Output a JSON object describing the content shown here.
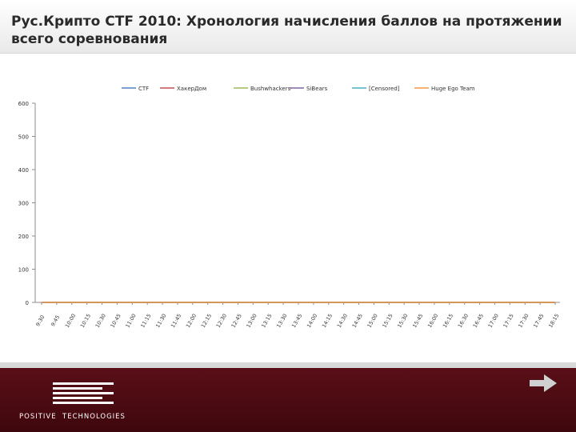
{
  "slide": {
    "title": "Рус.Крипто CTF 2010: Хронология начисления баллов на протяжении всего соревнования"
  },
  "footer": {
    "logo_text": "POSITIVE  TECHNOLOGIES",
    "logo_icon": "positive-technologies-logo",
    "next_icon": "arrow-right-icon",
    "background_color": "#4f0c14"
  },
  "chart_data": {
    "type": "line",
    "title": "",
    "xlabel": "",
    "ylabel": "",
    "ylim": [
      0,
      600
    ],
    "yticks": [
      0,
      100,
      200,
      300,
      400,
      500,
      600
    ],
    "grid": false,
    "legend_position": "top",
    "categories": [
      "9:30",
      "9:45",
      "10:00",
      "10:15",
      "10:30",
      "10:45",
      "11:00",
      "11:15",
      "11:30",
      "11:45",
      "12:00",
      "12:15",
      "12:30",
      "12:45",
      "13:00",
      "13:15",
      "13:30",
      "13:45",
      "14:00",
      "14:15",
      "14:30",
      "14:45",
      "15:00",
      "15:15",
      "15:30",
      "15:45",
      "16:00",
      "16:15",
      "16:30",
      "16:45",
      "17:00",
      "17:15",
      "17:30",
      "17:45",
      "18:15"
    ],
    "label_categories": [
      "9:30",
      "9:45",
      "10:00",
      "10:15",
      "10:30",
      "10:45",
      "11:00",
      "11:15",
      "11:30",
      "11:45",
      "12:00",
      "12:15",
      "12:30",
      "12:45",
      "13:00",
      "13:15",
      "13:30",
      "13:45",
      "14:00",
      "14:15",
      "14:30",
      "14:45",
      "15:00",
      "15:15",
      "15:30",
      "15:45",
      "16:00",
      "16:15",
      "16:30",
      "16:45",
      "17:00",
      "17:15",
      "17:30",
      "17:45",
      "18:15"
    ],
    "series": [
      {
        "name": "CTF",
        "color": "#4f81bd",
        "values": [
          0,
          0,
          0,
          0,
          0,
          0,
          0,
          0,
          0,
          0,
          0,
          0,
          0,
          0,
          0,
          0,
          0,
          0,
          0,
          0,
          0,
          0,
          0,
          0,
          0,
          0,
          0,
          0,
          0,
          0,
          0,
          0,
          0,
          0,
          0
        ]
      },
      {
        "name": "ХакерДом",
        "color": "#c0504d",
        "values": [
          0,
          0,
          0,
          0,
          0,
          0,
          0,
          0,
          0,
          0,
          0,
          0,
          0,
          0,
          0,
          0,
          0,
          0,
          0,
          0,
          0,
          0,
          0,
          0,
          0,
          0,
          0,
          0,
          0,
          0,
          0,
          0,
          0,
          0,
          0
        ]
      },
      {
        "name": "Bushwhackers",
        "color": "#9bbb59",
        "values": [
          0,
          0,
          0,
          0,
          0,
          0,
          0,
          0,
          0,
          0,
          0,
          0,
          0,
          0,
          0,
          0,
          0,
          0,
          0,
          0,
          0,
          0,
          0,
          0,
          0,
          0,
          0,
          0,
          0,
          0,
          0,
          0,
          0,
          0,
          0
        ]
      },
      {
        "name": "SiBears",
        "color": "#8064a2",
        "values": [
          0,
          0,
          0,
          0,
          0,
          0,
          0,
          0,
          0,
          0,
          0,
          0,
          0,
          0,
          0,
          0,
          0,
          0,
          0,
          0,
          0,
          0,
          0,
          0,
          0,
          0,
          0,
          0,
          0,
          0,
          0,
          0,
          0,
          0,
          0
        ]
      },
      {
        "name": "[Censored]",
        "color": "#4bacc6",
        "values": [
          0,
          0,
          0,
          0,
          0,
          0,
          0,
          0,
          0,
          0,
          0,
          0,
          0,
          0,
          0,
          0,
          0,
          0,
          0,
          0,
          0,
          0,
          0,
          0,
          0,
          0,
          0,
          0,
          0,
          0,
          0,
          0,
          0,
          0,
          0
        ]
      },
      {
        "name": "Huge Ego Team",
        "color": "#f79646",
        "values": [
          0,
          0,
          0,
          0,
          0,
          0,
          0,
          0,
          0,
          0,
          0,
          0,
          0,
          0,
          0,
          0,
          0,
          0,
          0,
          0,
          0,
          0,
          0,
          0,
          0,
          0,
          0,
          0,
          0,
          0,
          0,
          0,
          0,
          0,
          0
        ]
      }
    ]
  }
}
